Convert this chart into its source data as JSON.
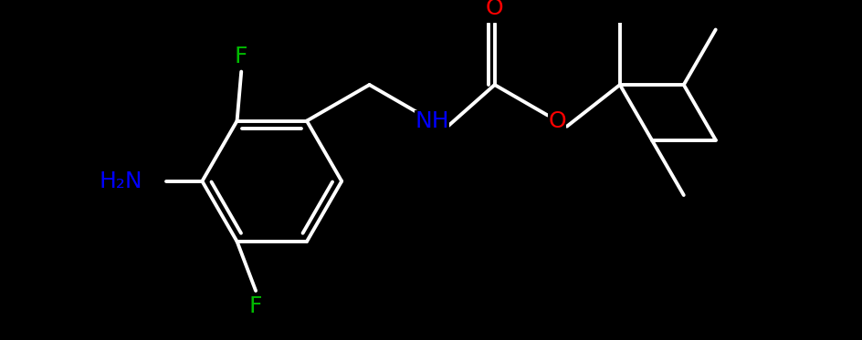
{
  "bg_color": "#000000",
  "bond_color": "#ffffff",
  "bond_width": 2.8,
  "atom_colors": {
    "F": "#00bb00",
    "N": "#0000ff",
    "O": "#ff0000",
    "C": "#ffffff"
  },
  "font_size": 18,
  "figsize": [
    9.44,
    3.73
  ],
  "dpi": 100,
  "xlim": [
    0,
    9.44
  ],
  "ylim": [
    0,
    3.73
  ]
}
